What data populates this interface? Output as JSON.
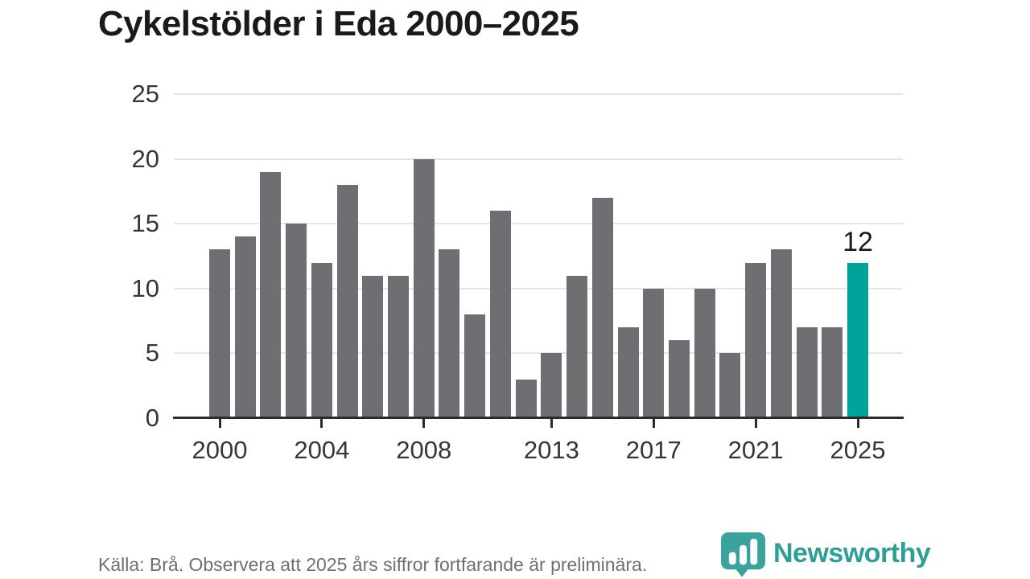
{
  "chart_data": {
    "type": "bar",
    "title": "Cykelstölder i Eda 2000–2025",
    "categories": [
      2000,
      2001,
      2002,
      2003,
      2004,
      2005,
      2006,
      2007,
      2008,
      2009,
      2010,
      2011,
      2012,
      2013,
      2014,
      2015,
      2016,
      2017,
      2018,
      2019,
      2020,
      2021,
      2022,
      2023,
      2024,
      2025
    ],
    "values": [
      13,
      14,
      19,
      15,
      12,
      18,
      11,
      11,
      20,
      13,
      8,
      16,
      3,
      5,
      11,
      17,
      7,
      10,
      6,
      10,
      5,
      12,
      13,
      7,
      7,
      12
    ],
    "highlight": {
      "index": 25,
      "year": 2025,
      "value": 12,
      "label": "12"
    },
    "xlabel": "",
    "ylabel": "",
    "ylim": [
      0,
      25
    ],
    "yticks": [
      0,
      5,
      10,
      15,
      20,
      25
    ],
    "xticks": [
      {
        "year": 2000,
        "label": "2000"
      },
      {
        "year": 2004,
        "label": "2004"
      },
      {
        "year": 2008,
        "label": "2008"
      },
      {
        "year": 2013,
        "label": "2013"
      },
      {
        "year": 2017,
        "label": "2017"
      },
      {
        "year": 2021,
        "label": "2021"
      },
      {
        "year": 2025,
        "label": "2025"
      }
    ],
    "grid": "horizontal",
    "legend": "none"
  },
  "footer": {
    "source_text": "Källa: Brå. Observera att 2025 års siffror fortfarande är preliminära.",
    "brand_name": "Newsworthy"
  },
  "colors": {
    "background": "#ffffff",
    "bar_default": "#6e6e73",
    "bar_highlight": "#00a39b",
    "gridline": "#e5e5e5",
    "axis": "#2b2b2b",
    "title_text": "#1a1a1a",
    "tick_text": "#363636",
    "footer_text": "#6f6f6f",
    "brand_teal": "#3aa39c",
    "brand_text": "#2f9e96"
  }
}
